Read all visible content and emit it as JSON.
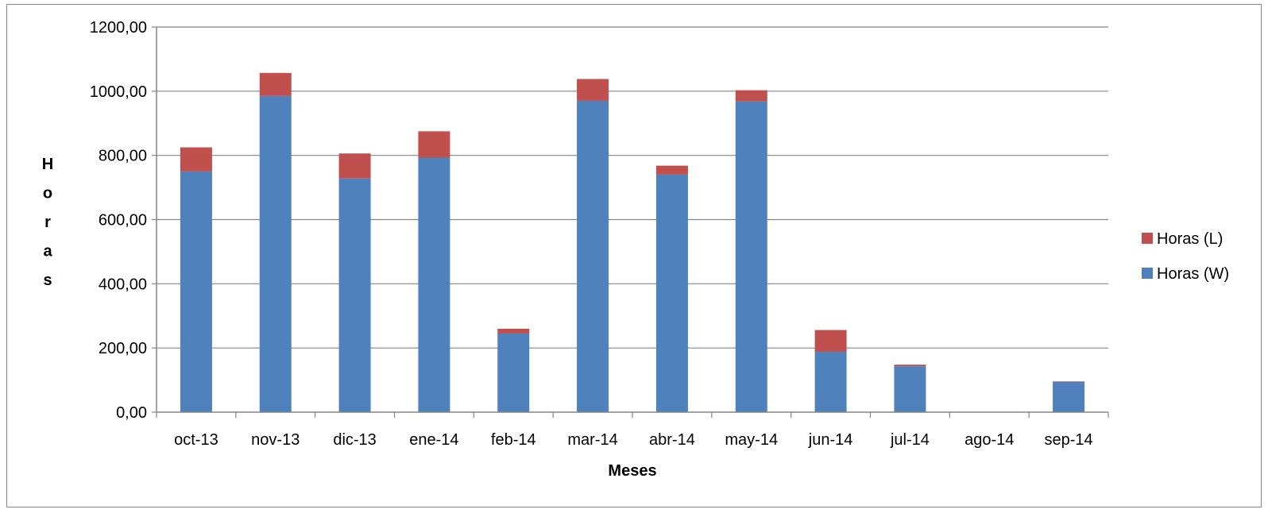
{
  "chart_data": {
    "type": "bar",
    "stacked": true,
    "categories": [
      "oct-13",
      "nov-13",
      "dic-13",
      "ene-14",
      "feb-14",
      "mar-14",
      "abr-14",
      "may-14",
      "jun-14",
      "jul-14",
      "ago-14",
      "sep-14"
    ],
    "series": [
      {
        "name": "Horas (W)",
        "color": "#4F81BD",
        "values": [
          750,
          985,
          728,
          793,
          245,
          970,
          740,
          968,
          188,
          143,
          0,
          95
        ]
      },
      {
        "name": "Horas (L)",
        "color": "#C0504D",
        "values": [
          75,
          72,
          78,
          82,
          15,
          68,
          28,
          35,
          68,
          5,
          0,
          1
        ]
      }
    ],
    "xlabel": "Meses",
    "ylabel": "Horas",
    "ylabel_letters": [
      "H",
      "o",
      "r",
      "a",
      "s"
    ],
    "ylim": [
      0,
      1200
    ],
    "yticks": [
      "0,00",
      "200,00",
      "400,00",
      "600,00",
      "800,00",
      "1000,00",
      "1200,00"
    ],
    "ytick_values": [
      0,
      200,
      400,
      600,
      800,
      1000,
      1200
    ],
    "grid": true,
    "legend_position": "right",
    "legend_order": [
      "Horas (L)",
      "Horas (W)"
    ]
  }
}
